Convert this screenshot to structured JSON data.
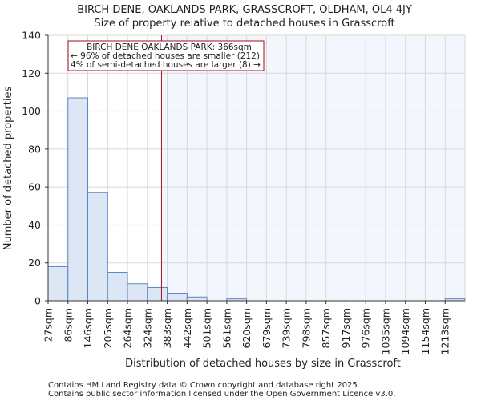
{
  "chart_data": {
    "type": "bar",
    "title": "BIRCH DENE, OAKLANDS PARK, GRASSCROFT, OLDHAM, OL4 4JY",
    "subtitle": "Size of property relative to detached houses in Grasscroft",
    "xlabel": "Distribution of detached houses by size in Grasscroft",
    "ylabel": "Number of detached properties",
    "bin_edges": [
      27,
      86,
      146,
      205,
      264,
      324,
      383,
      442,
      501,
      561,
      620,
      679,
      739,
      798,
      857,
      917,
      976,
      1035,
      1094,
      1154,
      1213
    ],
    "x_tick_labels": [
      "27sqm",
      "86sqm",
      "146sqm",
      "205sqm",
      "264sqm",
      "324sqm",
      "383sqm",
      "442sqm",
      "501sqm",
      "561sqm",
      "620sqm",
      "679sqm",
      "739sqm",
      "798sqm",
      "857sqm",
      "917sqm",
      "976sqm",
      "1035sqm",
      "1094sqm",
      "1154sqm",
      "1213sqm"
    ],
    "values": [
      18,
      107,
      57,
      15,
      9,
      7,
      4,
      2,
      0,
      1,
      0,
      0,
      0,
      0,
      0,
      0,
      0,
      0,
      0,
      0,
      1
    ],
    "ylim": [
      0,
      140
    ],
    "y_ticks": [
      0,
      20,
      40,
      60,
      80,
      100,
      120,
      140
    ],
    "grid": true,
    "marker_value": 366,
    "annotation": {
      "line1": "BIRCH DENE OAKLANDS PARK: 366sqm",
      "line2": "← 96% of detached houses are smaller (212)",
      "line3": "4% of semi-detached houses are larger (8) →"
    },
    "colors": {
      "bar_fill": "#dce6f4",
      "bar_stroke": "#5b86c2",
      "marker": "#a01020",
      "highlight_bg": "#f3f6fd",
      "grid": "#d8d8d8"
    }
  },
  "footer": {
    "line1": "Contains HM Land Registry data © Crown copyright and database right 2025.",
    "line2": "Contains public sector information licensed under the Open Government Licence v3.0."
  }
}
